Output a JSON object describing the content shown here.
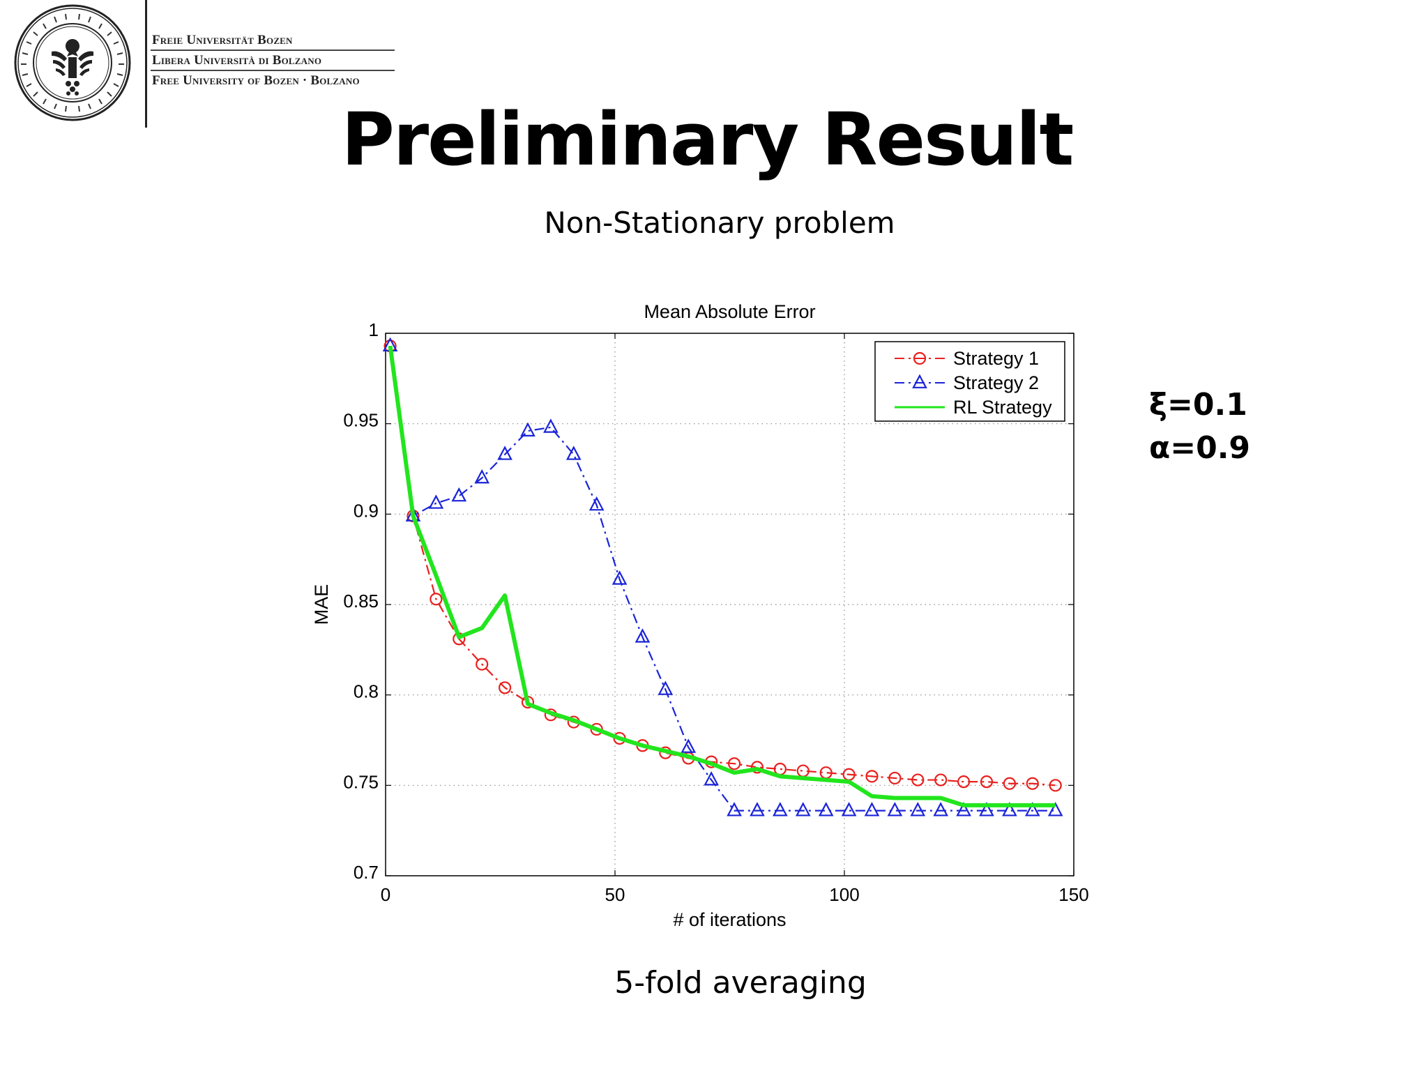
{
  "header": {
    "university_lines": [
      "Freie Universität Bozen",
      "Libera Università di Bolzano",
      "Free University of Bozen · Bolzano"
    ]
  },
  "slide": {
    "title": "Preliminary Result",
    "subtitle": "Non-Stationary problem",
    "params": [
      "ξ=0.1",
      "α=0.9"
    ],
    "footnote": "5-fold averaging"
  },
  "chart_data": {
    "type": "line",
    "title": "Mean Absolute Error",
    "xlabel": "# of iterations",
    "ylabel": "MAE",
    "xlim": [
      0,
      150
    ],
    "ylim": [
      0.7,
      1
    ],
    "xticks": [
      0,
      50,
      100,
      150
    ],
    "xtick_labels": [
      "0",
      "50",
      "100",
      "150"
    ],
    "yticks": [
      0.7,
      0.75,
      0.8,
      0.85,
      0.9,
      0.95,
      1
    ],
    "ytick_labels": [
      "0.7",
      "0.75",
      "0.8",
      "0.85",
      "0.9",
      "0.95",
      "1"
    ],
    "grid": true,
    "legend_position": "top-right",
    "series": [
      {
        "name": "Strategy 1",
        "color": "#e8201e",
        "marker": "circle",
        "line_style": "dash-dot",
        "x": [
          1,
          6,
          11,
          16,
          21,
          26,
          31,
          36,
          41,
          46,
          51,
          56,
          61,
          66,
          71,
          76,
          81,
          86,
          91,
          96,
          101,
          106,
          111,
          116,
          121,
          126,
          131,
          136,
          141,
          146
        ],
        "y": [
          0.993,
          0.899,
          0.853,
          0.831,
          0.817,
          0.804,
          0.796,
          0.789,
          0.785,
          0.781,
          0.776,
          0.772,
          0.768,
          0.765,
          0.763,
          0.762,
          0.76,
          0.759,
          0.758,
          0.757,
          0.756,
          0.755,
          0.754,
          0.753,
          0.753,
          0.752,
          0.752,
          0.751,
          0.751,
          0.75
        ]
      },
      {
        "name": "Strategy 2",
        "color": "#1a24d8",
        "marker": "triangle",
        "line_style": "dash-dot",
        "x": [
          1,
          6,
          11,
          16,
          21,
          26,
          31,
          36,
          41,
          46,
          51,
          56,
          61,
          66,
          71,
          76,
          81,
          86,
          91,
          96,
          101,
          106,
          111,
          116,
          121,
          126,
          131,
          136,
          141,
          146
        ],
        "y": [
          0.993,
          0.899,
          0.906,
          0.91,
          0.92,
          0.933,
          0.946,
          0.948,
          0.933,
          0.905,
          0.864,
          0.832,
          0.803,
          0.771,
          0.753,
          0.736,
          0.736,
          0.736,
          0.736,
          0.736,
          0.736,
          0.736,
          0.736,
          0.736,
          0.736,
          0.736,
          0.736,
          0.736,
          0.736,
          0.736
        ]
      },
      {
        "name": "RL Strategy",
        "color": "#22e51e",
        "marker": "none",
        "line_style": "solid",
        "x": [
          1,
          6,
          11,
          16,
          21,
          26,
          31,
          36,
          41,
          46,
          51,
          56,
          61,
          66,
          71,
          76,
          81,
          86,
          91,
          96,
          101,
          106,
          111,
          116,
          121,
          126,
          131,
          136,
          141,
          146
        ],
        "y": [
          0.993,
          0.899,
          0.866,
          0.832,
          0.837,
          0.855,
          0.795,
          0.79,
          0.786,
          0.781,
          0.776,
          0.772,
          0.769,
          0.766,
          0.762,
          0.757,
          0.759,
          0.755,
          0.754,
          0.753,
          0.752,
          0.744,
          0.743,
          0.743,
          0.743,
          0.739,
          0.739,
          0.739,
          0.739,
          0.739
        ]
      }
    ]
  }
}
